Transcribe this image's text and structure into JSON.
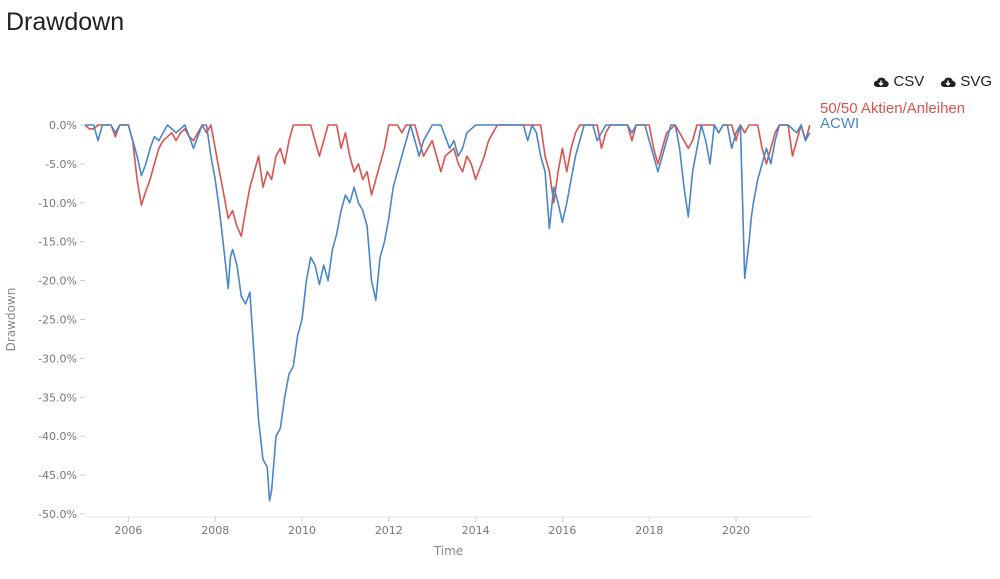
{
  "page": {
    "title": "Drawdown",
    "downloads": [
      {
        "label": "CSV",
        "icon": "cloud-download-icon"
      },
      {
        "label": "SVG",
        "icon": "cloud-download-icon"
      }
    ]
  },
  "chart_data": {
    "type": "line",
    "title": "Drawdown",
    "xlabel": "Time",
    "ylabel": "Drawdown",
    "xlim": [
      2005.0,
      2021.75
    ],
    "ylim": [
      -50,
      0
    ],
    "grid": false,
    "legend_position": "top-right",
    "x_ticks": [
      2006,
      2008,
      2010,
      2012,
      2014,
      2016,
      2018,
      2020
    ],
    "y_ticks": [
      0,
      -5,
      -10,
      -15,
      -20,
      -25,
      -30,
      -35,
      -40,
      -45,
      -50
    ],
    "y_tick_labels": [
      "0.0%",
      "-5.0%",
      "-10.0%",
      "-15.0%",
      "-20.0%",
      "-25.0%",
      "-30.0%",
      "-35.0%",
      "-40.0%",
      "-45.0%",
      "-50.0%"
    ],
    "series": [
      {
        "name": "50/50 Aktien/Anleihen",
        "color": "#d9534f",
        "points": [
          [
            2005.0,
            0
          ],
          [
            2005.1,
            -0.5
          ],
          [
            2005.2,
            -0.5
          ],
          [
            2005.3,
            0
          ],
          [
            2005.5,
            0
          ],
          [
            2005.6,
            0
          ],
          [
            2005.7,
            -1.5
          ],
          [
            2005.8,
            0
          ],
          [
            2005.9,
            0
          ],
          [
            2006.0,
            0
          ],
          [
            2006.1,
            -2
          ],
          [
            2006.2,
            -7
          ],
          [
            2006.3,
            -10.3
          ],
          [
            2006.4,
            -8.5
          ],
          [
            2006.5,
            -7
          ],
          [
            2006.6,
            -5
          ],
          [
            2006.7,
            -3
          ],
          [
            2006.8,
            -2
          ],
          [
            2006.9,
            -1.5
          ],
          [
            2007.0,
            -1
          ],
          [
            2007.1,
            -2
          ],
          [
            2007.2,
            -1
          ],
          [
            2007.3,
            -0.5
          ],
          [
            2007.4,
            -1.5
          ],
          [
            2007.5,
            -2
          ],
          [
            2007.6,
            -1
          ],
          [
            2007.7,
            0
          ],
          [
            2007.8,
            -1
          ],
          [
            2007.9,
            0
          ],
          [
            2008.0,
            -3
          ],
          [
            2008.1,
            -6
          ],
          [
            2008.2,
            -9
          ],
          [
            2008.3,
            -12
          ],
          [
            2008.4,
            -11
          ],
          [
            2008.5,
            -13
          ],
          [
            2008.6,
            -14.3
          ],
          [
            2008.7,
            -11
          ],
          [
            2008.8,
            -8
          ],
          [
            2008.9,
            -6
          ],
          [
            2009.0,
            -4
          ],
          [
            2009.1,
            -8
          ],
          [
            2009.2,
            -6
          ],
          [
            2009.3,
            -7
          ],
          [
            2009.4,
            -4
          ],
          [
            2009.5,
            -3
          ],
          [
            2009.6,
            -5
          ],
          [
            2009.7,
            -2
          ],
          [
            2009.8,
            0
          ],
          [
            2010.0,
            0
          ],
          [
            2010.2,
            0
          ],
          [
            2010.3,
            -2
          ],
          [
            2010.4,
            -4
          ],
          [
            2010.5,
            -2
          ],
          [
            2010.6,
            0
          ],
          [
            2010.8,
            0
          ],
          [
            2010.9,
            -3
          ],
          [
            2011.0,
            -1
          ],
          [
            2011.1,
            -4
          ],
          [
            2011.2,
            -6
          ],
          [
            2011.3,
            -5
          ],
          [
            2011.4,
            -7
          ],
          [
            2011.5,
            -6
          ],
          [
            2011.6,
            -9
          ],
          [
            2011.7,
            -7
          ],
          [
            2011.8,
            -5
          ],
          [
            2011.9,
            -3
          ],
          [
            2012.0,
            0
          ],
          [
            2012.2,
            0
          ],
          [
            2012.3,
            -1
          ],
          [
            2012.4,
            0
          ],
          [
            2012.6,
            0
          ],
          [
            2012.7,
            -2
          ],
          [
            2012.8,
            -4
          ],
          [
            2012.9,
            -3
          ],
          [
            2013.0,
            -2
          ],
          [
            2013.1,
            -4
          ],
          [
            2013.2,
            -6
          ],
          [
            2013.3,
            -4
          ],
          [
            2013.5,
            -3
          ],
          [
            2013.6,
            -5
          ],
          [
            2013.7,
            -6
          ],
          [
            2013.8,
            -4
          ],
          [
            2013.9,
            -5
          ],
          [
            2014.0,
            -7
          ],
          [
            2014.2,
            -4
          ],
          [
            2014.3,
            -2
          ],
          [
            2014.4,
            -1
          ],
          [
            2014.5,
            0
          ],
          [
            2015.0,
            0
          ],
          [
            2015.5,
            0
          ],
          [
            2015.6,
            -4
          ],
          [
            2015.7,
            -6
          ],
          [
            2015.8,
            -10
          ],
          [
            2015.9,
            -6
          ],
          [
            2016.0,
            -3
          ],
          [
            2016.1,
            -6
          ],
          [
            2016.2,
            -3
          ],
          [
            2016.3,
            -1
          ],
          [
            2016.4,
            0
          ],
          [
            2016.6,
            0
          ],
          [
            2016.8,
            0
          ],
          [
            2016.9,
            -3
          ],
          [
            2017.0,
            -1
          ],
          [
            2017.1,
            0
          ],
          [
            2017.5,
            0
          ],
          [
            2017.6,
            -2
          ],
          [
            2017.7,
            0
          ],
          [
            2018.0,
            0
          ],
          [
            2018.1,
            -3
          ],
          [
            2018.2,
            -5
          ],
          [
            2018.3,
            -3
          ],
          [
            2018.4,
            -1
          ],
          [
            2018.6,
            0
          ],
          [
            2018.8,
            -2
          ],
          [
            2018.9,
            -3
          ],
          [
            2019.0,
            -2
          ],
          [
            2019.1,
            0
          ],
          [
            2019.5,
            0
          ],
          [
            2019.6,
            -1
          ],
          [
            2019.7,
            0
          ],
          [
            2019.9,
            0
          ],
          [
            2020.0,
            -2
          ],
          [
            2020.1,
            0
          ],
          [
            2020.2,
            -1
          ],
          [
            2020.3,
            0
          ],
          [
            2020.5,
            0
          ],
          [
            2020.6,
            -3
          ],
          [
            2020.7,
            -5
          ],
          [
            2020.8,
            -3
          ],
          [
            2020.9,
            -1
          ],
          [
            2021.0,
            0
          ],
          [
            2021.2,
            0
          ],
          [
            2021.3,
            -4
          ],
          [
            2021.4,
            -2
          ],
          [
            2021.5,
            0
          ],
          [
            2021.6,
            -2
          ],
          [
            2021.7,
            0
          ]
        ]
      },
      {
        "name": "ACWI",
        "color": "#4a86c8",
        "points": [
          [
            2005.0,
            0
          ],
          [
            2005.1,
            0
          ],
          [
            2005.2,
            0
          ],
          [
            2005.3,
            -2
          ],
          [
            2005.4,
            0
          ],
          [
            2005.6,
            0
          ],
          [
            2005.7,
            -1
          ],
          [
            2005.8,
            0
          ],
          [
            2006.0,
            0
          ],
          [
            2006.1,
            -2
          ],
          [
            2006.2,
            -4
          ],
          [
            2006.3,
            -6.5
          ],
          [
            2006.4,
            -5
          ],
          [
            2006.5,
            -3
          ],
          [
            2006.6,
            -1.5
          ],
          [
            2006.7,
            -2
          ],
          [
            2006.8,
            -1
          ],
          [
            2006.9,
            0
          ],
          [
            2007.0,
            -0.5
          ],
          [
            2007.1,
            -1
          ],
          [
            2007.3,
            0
          ],
          [
            2007.4,
            -1.5
          ],
          [
            2007.5,
            -3
          ],
          [
            2007.6,
            -1.5
          ],
          [
            2007.7,
            0
          ],
          [
            2007.8,
            0
          ],
          [
            2007.9,
            -4
          ],
          [
            2008.0,
            -7
          ],
          [
            2008.1,
            -11
          ],
          [
            2008.2,
            -16
          ],
          [
            2008.3,
            -21
          ],
          [
            2008.35,
            -17
          ],
          [
            2008.4,
            -16
          ],
          [
            2008.5,
            -18
          ],
          [
            2008.6,
            -22
          ],
          [
            2008.7,
            -23
          ],
          [
            2008.8,
            -21.5
          ],
          [
            2008.9,
            -30
          ],
          [
            2009.0,
            -38
          ],
          [
            2009.1,
            -43
          ],
          [
            2009.2,
            -44
          ],
          [
            2009.25,
            -48.3
          ],
          [
            2009.3,
            -47
          ],
          [
            2009.4,
            -40
          ],
          [
            2009.5,
            -39
          ],
          [
            2009.6,
            -35
          ],
          [
            2009.7,
            -32
          ],
          [
            2009.8,
            -31
          ],
          [
            2009.9,
            -27
          ],
          [
            2010.0,
            -25
          ],
          [
            2010.1,
            -20
          ],
          [
            2010.2,
            -17
          ],
          [
            2010.3,
            -18
          ],
          [
            2010.4,
            -20.5
          ],
          [
            2010.5,
            -18
          ],
          [
            2010.6,
            -20
          ],
          [
            2010.7,
            -16
          ],
          [
            2010.8,
            -14
          ],
          [
            2010.9,
            -11
          ],
          [
            2011.0,
            -9
          ],
          [
            2011.1,
            -10
          ],
          [
            2011.2,
            -8
          ],
          [
            2011.3,
            -10
          ],
          [
            2011.4,
            -11
          ],
          [
            2011.5,
            -13
          ],
          [
            2011.6,
            -20
          ],
          [
            2011.7,
            -22.5
          ],
          [
            2011.8,
            -17
          ],
          [
            2011.9,
            -15
          ],
          [
            2012.0,
            -12
          ],
          [
            2012.1,
            -8
          ],
          [
            2012.2,
            -6
          ],
          [
            2012.3,
            -4
          ],
          [
            2012.4,
            -2
          ],
          [
            2012.5,
            0
          ],
          [
            2012.6,
            -2
          ],
          [
            2012.7,
            -4
          ],
          [
            2012.8,
            -2
          ],
          [
            2012.9,
            -1
          ],
          [
            2013.0,
            0
          ],
          [
            2013.2,
            0
          ],
          [
            2013.4,
            -3
          ],
          [
            2013.5,
            -2
          ],
          [
            2013.6,
            -4
          ],
          [
            2013.7,
            -3
          ],
          [
            2013.8,
            -1
          ],
          [
            2014.0,
            0
          ],
          [
            2014.5,
            0
          ],
          [
            2015.0,
            0
          ],
          [
            2015.1,
            0
          ],
          [
            2015.2,
            -2
          ],
          [
            2015.3,
            0
          ],
          [
            2015.4,
            -1
          ],
          [
            2015.5,
            -4
          ],
          [
            2015.6,
            -6
          ],
          [
            2015.7,
            -13.3
          ],
          [
            2015.8,
            -8
          ],
          [
            2015.9,
            -10
          ],
          [
            2016.0,
            -12.5
          ],
          [
            2016.1,
            -10
          ],
          [
            2016.2,
            -7
          ],
          [
            2016.3,
            -4
          ],
          [
            2016.4,
            -2
          ],
          [
            2016.5,
            0
          ],
          [
            2016.7,
            0
          ],
          [
            2016.8,
            -2
          ],
          [
            2016.9,
            -1
          ],
          [
            2017.0,
            0
          ],
          [
            2017.5,
            0
          ],
          [
            2017.6,
            -1
          ],
          [
            2017.7,
            0
          ],
          [
            2017.9,
            0
          ],
          [
            2018.0,
            -2
          ],
          [
            2018.1,
            -4
          ],
          [
            2018.2,
            -6
          ],
          [
            2018.3,
            -4
          ],
          [
            2018.4,
            -2
          ],
          [
            2018.5,
            0
          ],
          [
            2018.6,
            0
          ],
          [
            2018.7,
            -3
          ],
          [
            2018.8,
            -8
          ],
          [
            2018.9,
            -11.8
          ],
          [
            2019.0,
            -6
          ],
          [
            2019.1,
            -3
          ],
          [
            2019.2,
            0
          ],
          [
            2019.3,
            -2
          ],
          [
            2019.4,
            -5
          ],
          [
            2019.5,
            0
          ],
          [
            2019.6,
            -1
          ],
          [
            2019.7,
            0
          ],
          [
            2019.8,
            0
          ],
          [
            2019.9,
            -3
          ],
          [
            2020.0,
            -1
          ],
          [
            2020.1,
            0
          ],
          [
            2020.15,
            -10
          ],
          [
            2020.2,
            -19.7
          ],
          [
            2020.3,
            -15
          ],
          [
            2020.35,
            -12
          ],
          [
            2020.4,
            -10
          ],
          [
            2020.5,
            -7
          ],
          [
            2020.6,
            -5
          ],
          [
            2020.7,
            -3
          ],
          [
            2020.8,
            -5
          ],
          [
            2020.9,
            -2
          ],
          [
            2021.0,
            0
          ],
          [
            2021.2,
            0
          ],
          [
            2021.4,
            -1
          ],
          [
            2021.5,
            0
          ],
          [
            2021.6,
            -2
          ],
          [
            2021.7,
            -1
          ]
        ]
      }
    ]
  }
}
